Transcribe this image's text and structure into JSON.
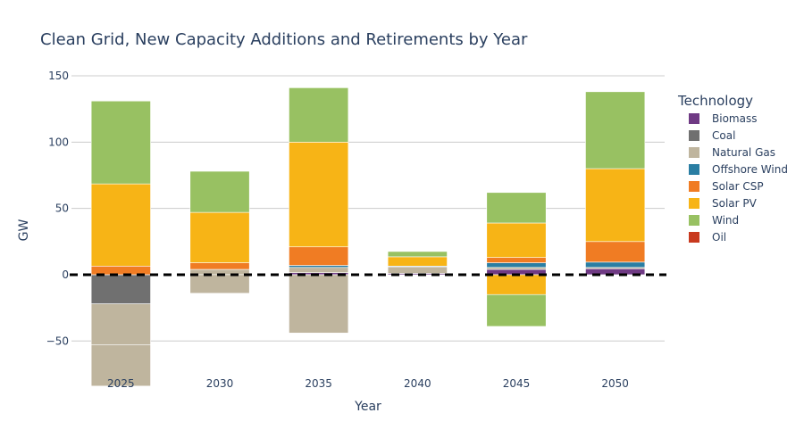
{
  "chart_data": {
    "type": "bar",
    "barmode": "relative",
    "title": "Clean Grid, New Capacity Additions and Retirements by Year",
    "xlabel": "Year",
    "ylabel": "GW",
    "ylim": [
      -70,
      150
    ],
    "yticks": [
      -50,
      0,
      50,
      100,
      150
    ],
    "ytick_labels": [
      "−50",
      "0",
      "50",
      "100",
      "150"
    ],
    "categories": [
      "2025",
      "2030",
      "2035",
      "2040",
      "2045",
      "2050"
    ],
    "legend_title": "Technology",
    "legend_position": "right",
    "grid": true,
    "zero_line": "dashed-black",
    "series": [
      {
        "name": "Biomass",
        "color": "#6f3a84",
        "values": [
          0,
          0,
          1.5,
          1,
          4,
          4.5
        ]
      },
      {
        "name": "Coal",
        "color": "#707070",
        "values": [
          -22,
          0,
          0,
          0,
          0,
          0
        ]
      },
      {
        "name": "Natural Gas",
        "color": "#bfb59e",
        "values": [
          -31,
          4,
          4,
          5,
          1.5,
          1
        ],
        "negative_values": [
          -31,
          -14,
          -44,
          0,
          0,
          0
        ]
      },
      {
        "name": "Offshore Wind",
        "color": "#2a7ea3",
        "values": [
          0,
          0,
          1.5,
          0.5,
          3.5,
          4
        ]
      },
      {
        "name": "Solar CSP",
        "color": "#f07c23",
        "values": [
          6.5,
          5,
          14,
          0,
          4,
          15.5
        ]
      },
      {
        "name": "Solar PV",
        "color": "#f7b416",
        "values": [
          62,
          38,
          79,
          7,
          26,
          55
        ],
        "negative_values": [
          0,
          0,
          0,
          0,
          -15,
          0
        ]
      },
      {
        "name": "Wind",
        "color": "#98c162",
        "values": [
          62.5,
          31,
          41,
          4,
          23,
          58
        ],
        "negative_values": [
          0,
          0,
          0,
          0,
          -24,
          0
        ]
      },
      {
        "name": "Oil",
        "color": "#c8391e",
        "values": [
          0,
          0,
          0,
          0,
          0,
          0
        ]
      }
    ]
  }
}
